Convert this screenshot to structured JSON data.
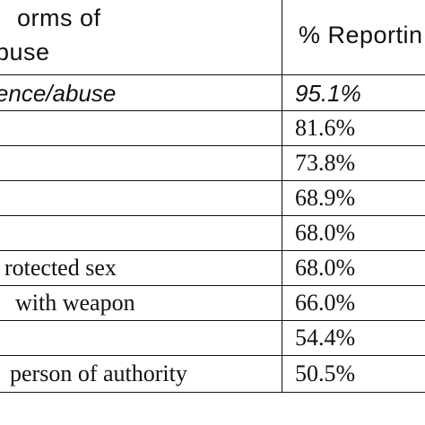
{
  "table": {
    "headers": {
      "col1_lines": [
        "orms of",
        "buse"
      ],
      "col2": "% Reportin"
    },
    "rows": [
      {
        "label": "of violence/abuse",
        "value": "95.1%"
      },
      {
        "label": "",
        "value": "81.6%"
      },
      {
        "label": "",
        "value": "73.8%"
      },
      {
        "label": "",
        "value": "68.9%"
      },
      {
        "label": "",
        "value": "68.0%"
      },
      {
        "label": "rotected sex",
        "value": "68.0%"
      },
      {
        "label": "with weapon",
        "value": "66.0%"
      },
      {
        "label": "",
        "value": "54.4%"
      },
      {
        "label": "person of authority",
        "value": "50.5%"
      }
    ]
  }
}
